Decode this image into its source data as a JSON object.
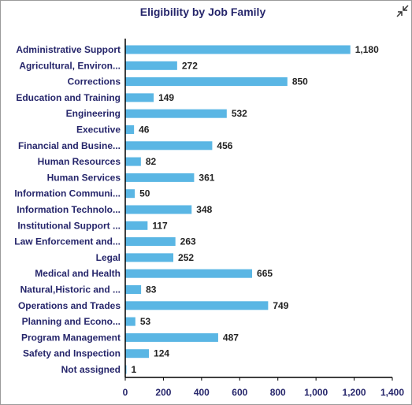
{
  "chart_data": {
    "type": "bar",
    "orientation": "horizontal",
    "title": "Eligibility by Job Family",
    "categories": [
      "Administrative Support",
      "Agricultural, Environ...",
      "Corrections",
      "Education and Training",
      "Engineering",
      "Executive",
      "Financial and Busine...",
      "Human Resources",
      "Human Services",
      "Information Communi...",
      "Information Technolo...",
      "Institutional Support ...",
      "Law Enforcement and...",
      "Legal",
      "Medical and Health",
      "Natural,Historic and ...",
      "Operations and Trades",
      "Planning and Econo...",
      "Program Management",
      "Safety and Inspection",
      "Not assigned"
    ],
    "values": [
      1180,
      272,
      850,
      149,
      532,
      46,
      456,
      82,
      361,
      50,
      348,
      117,
      263,
      252,
      665,
      83,
      749,
      53,
      487,
      124,
      1
    ],
    "value_labels": [
      "1,180",
      "272",
      "850",
      "149",
      "532",
      "46",
      "456",
      "82",
      "361",
      "50",
      "348",
      "117",
      "263",
      "252",
      "665",
      "83",
      "749",
      "53",
      "487",
      "124",
      "1"
    ],
    "xlim": [
      0,
      1400
    ],
    "xticks": [
      0,
      200,
      400,
      600,
      800,
      1000,
      1200,
      1400
    ],
    "xtick_labels": [
      "0",
      "200",
      "400",
      "600",
      "800",
      "1,000",
      "1,200",
      "1,400"
    ],
    "xlabel": "",
    "ylabel": "",
    "grid": false,
    "legend": "none",
    "bar_color": "#5ab6e4"
  },
  "toolbar": {
    "expand_icon": "expand-arrows-icon"
  }
}
